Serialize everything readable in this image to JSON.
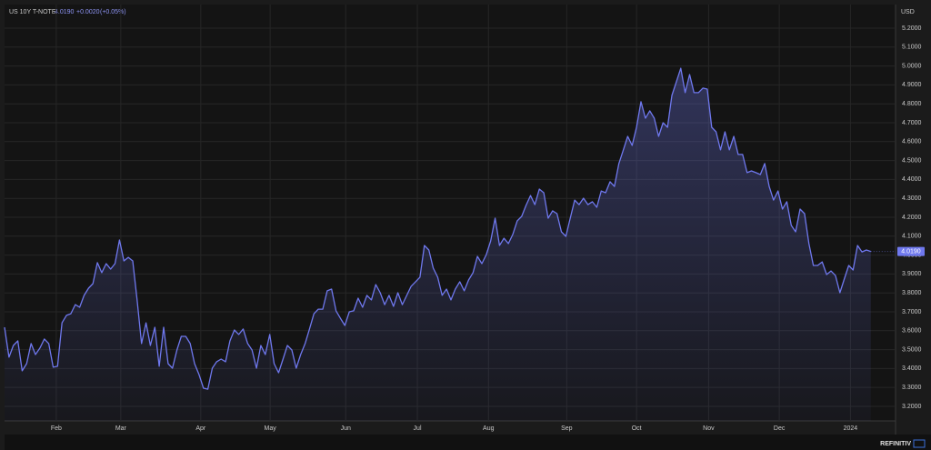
{
  "header": {
    "symbol": "US 10Y T-NOTE",
    "price": "4.0190",
    "change": "+0.0020",
    "change_pct": "(+0.05%)",
    "currency": "USD"
  },
  "footer": {
    "brand": "REFINITIV"
  },
  "chart_data": {
    "type": "line",
    "series": [
      {
        "name": "US 10Y T-NOTE",
        "color": "#6f78ee",
        "values": [
          3.618,
          3.46,
          3.522,
          3.546,
          3.388,
          3.426,
          3.532,
          3.474,
          3.508,
          3.556,
          3.532,
          3.407,
          3.412,
          3.642,
          3.681,
          3.69,
          3.738,
          3.724,
          3.787,
          3.825,
          3.849,
          3.96,
          3.907,
          3.955,
          3.926,
          3.955,
          4.08,
          3.969,
          3.988,
          3.969,
          3.763,
          3.532,
          3.642,
          3.522,
          3.618,
          3.412,
          3.618,
          3.426,
          3.402,
          3.498,
          3.57,
          3.57,
          3.532,
          3.426,
          3.368,
          3.296,
          3.291,
          3.402,
          3.436,
          3.45,
          3.436,
          3.546,
          3.604,
          3.58,
          3.609,
          3.532,
          3.498,
          3.402,
          3.522,
          3.474,
          3.58,
          3.426,
          3.378,
          3.45,
          3.522,
          3.498,
          3.402,
          3.474,
          3.532,
          3.609,
          3.69,
          3.714,
          3.714,
          3.811,
          3.82,
          3.705,
          3.666,
          3.628,
          3.7,
          3.705,
          3.772,
          3.724,
          3.787,
          3.763,
          3.844,
          3.801,
          3.738,
          3.787,
          3.729,
          3.801,
          3.738,
          3.787,
          3.835,
          3.859,
          3.883,
          4.051,
          4.027,
          3.931,
          3.883,
          3.787,
          3.82,
          3.763,
          3.82,
          3.859,
          3.811,
          3.868,
          3.907,
          3.993,
          3.955,
          4.003,
          4.075,
          4.195,
          4.051,
          4.089,
          4.061,
          4.109,
          4.181,
          4.205,
          4.263,
          4.315,
          4.267,
          4.349,
          4.33,
          4.195,
          4.234,
          4.219,
          4.123,
          4.099,
          4.195,
          4.291,
          4.267,
          4.301,
          4.267,
          4.282,
          4.253,
          4.339,
          4.33,
          4.388,
          4.363,
          4.484,
          4.556,
          4.628,
          4.58,
          4.676,
          4.811,
          4.724,
          4.763,
          4.724,
          4.628,
          4.7,
          4.676,
          4.844,
          4.916,
          4.988,
          4.859,
          4.955,
          4.859,
          4.859,
          4.883,
          4.878,
          4.676,
          4.652,
          4.556,
          4.652,
          4.556,
          4.628,
          4.532,
          4.532,
          4.436,
          4.445,
          4.436,
          4.426,
          4.484,
          4.363,
          4.291,
          4.339,
          4.243,
          4.282,
          4.157,
          4.123,
          4.243,
          4.219,
          4.061,
          3.945,
          3.945,
          3.964,
          3.897,
          3.916,
          3.892,
          3.801,
          3.873,
          3.945,
          3.921,
          4.051,
          4.017,
          4.027,
          4.019
        ]
      }
    ],
    "xlim": [
      0,
      201.6
    ],
    "xticks": [
      {
        "value": 11.7,
        "label": "Feb"
      },
      {
        "value": 26.3,
        "label": "Mar"
      },
      {
        "value": 44.4,
        "label": "Apr"
      },
      {
        "value": 60.1,
        "label": "May"
      },
      {
        "value": 77.2,
        "label": "Jun"
      },
      {
        "value": 93.4,
        "label": "Jul"
      },
      {
        "value": 109.5,
        "label": "Aug"
      },
      {
        "value": 127.2,
        "label": "Sep"
      },
      {
        "value": 143.0,
        "label": "Oct"
      },
      {
        "value": 159.3,
        "label": "Nov"
      },
      {
        "value": 175.3,
        "label": "Dec"
      },
      {
        "value": 191.4,
        "label": "2024"
      }
    ],
    "ylim": [
      3.123,
      5.325
    ],
    "yticks": [
      {
        "value": 3.2,
        "label": "3.2000"
      },
      {
        "value": 3.3,
        "label": "3.3000"
      },
      {
        "value": 3.4,
        "label": "3.4000"
      },
      {
        "value": 3.5,
        "label": "3.5000"
      },
      {
        "value": 3.6,
        "label": "3.6000"
      },
      {
        "value": 3.7,
        "label": "3.7000"
      },
      {
        "value": 3.8,
        "label": "3.8000"
      },
      {
        "value": 3.9,
        "label": "3.9000"
      },
      {
        "value": 4.0,
        "label": "4.0000"
      },
      {
        "value": 4.1,
        "label": "4.1000"
      },
      {
        "value": 4.2,
        "label": "4.2000"
      },
      {
        "value": 4.3,
        "label": "4.3000"
      },
      {
        "value": 4.4,
        "label": "4.4000"
      },
      {
        "value": 4.5,
        "label": "4.5000"
      },
      {
        "value": 4.6,
        "label": "4.6000"
      },
      {
        "value": 4.7,
        "label": "4.7000"
      },
      {
        "value": 4.8,
        "label": "4.8000"
      },
      {
        "value": 4.9,
        "label": "4.9000"
      },
      {
        "value": 5.0,
        "label": "5.0000"
      },
      {
        "value": 5.1,
        "label": "5.1000"
      },
      {
        "value": 5.2,
        "label": "5.2000"
      }
    ],
    "grid": true
  }
}
